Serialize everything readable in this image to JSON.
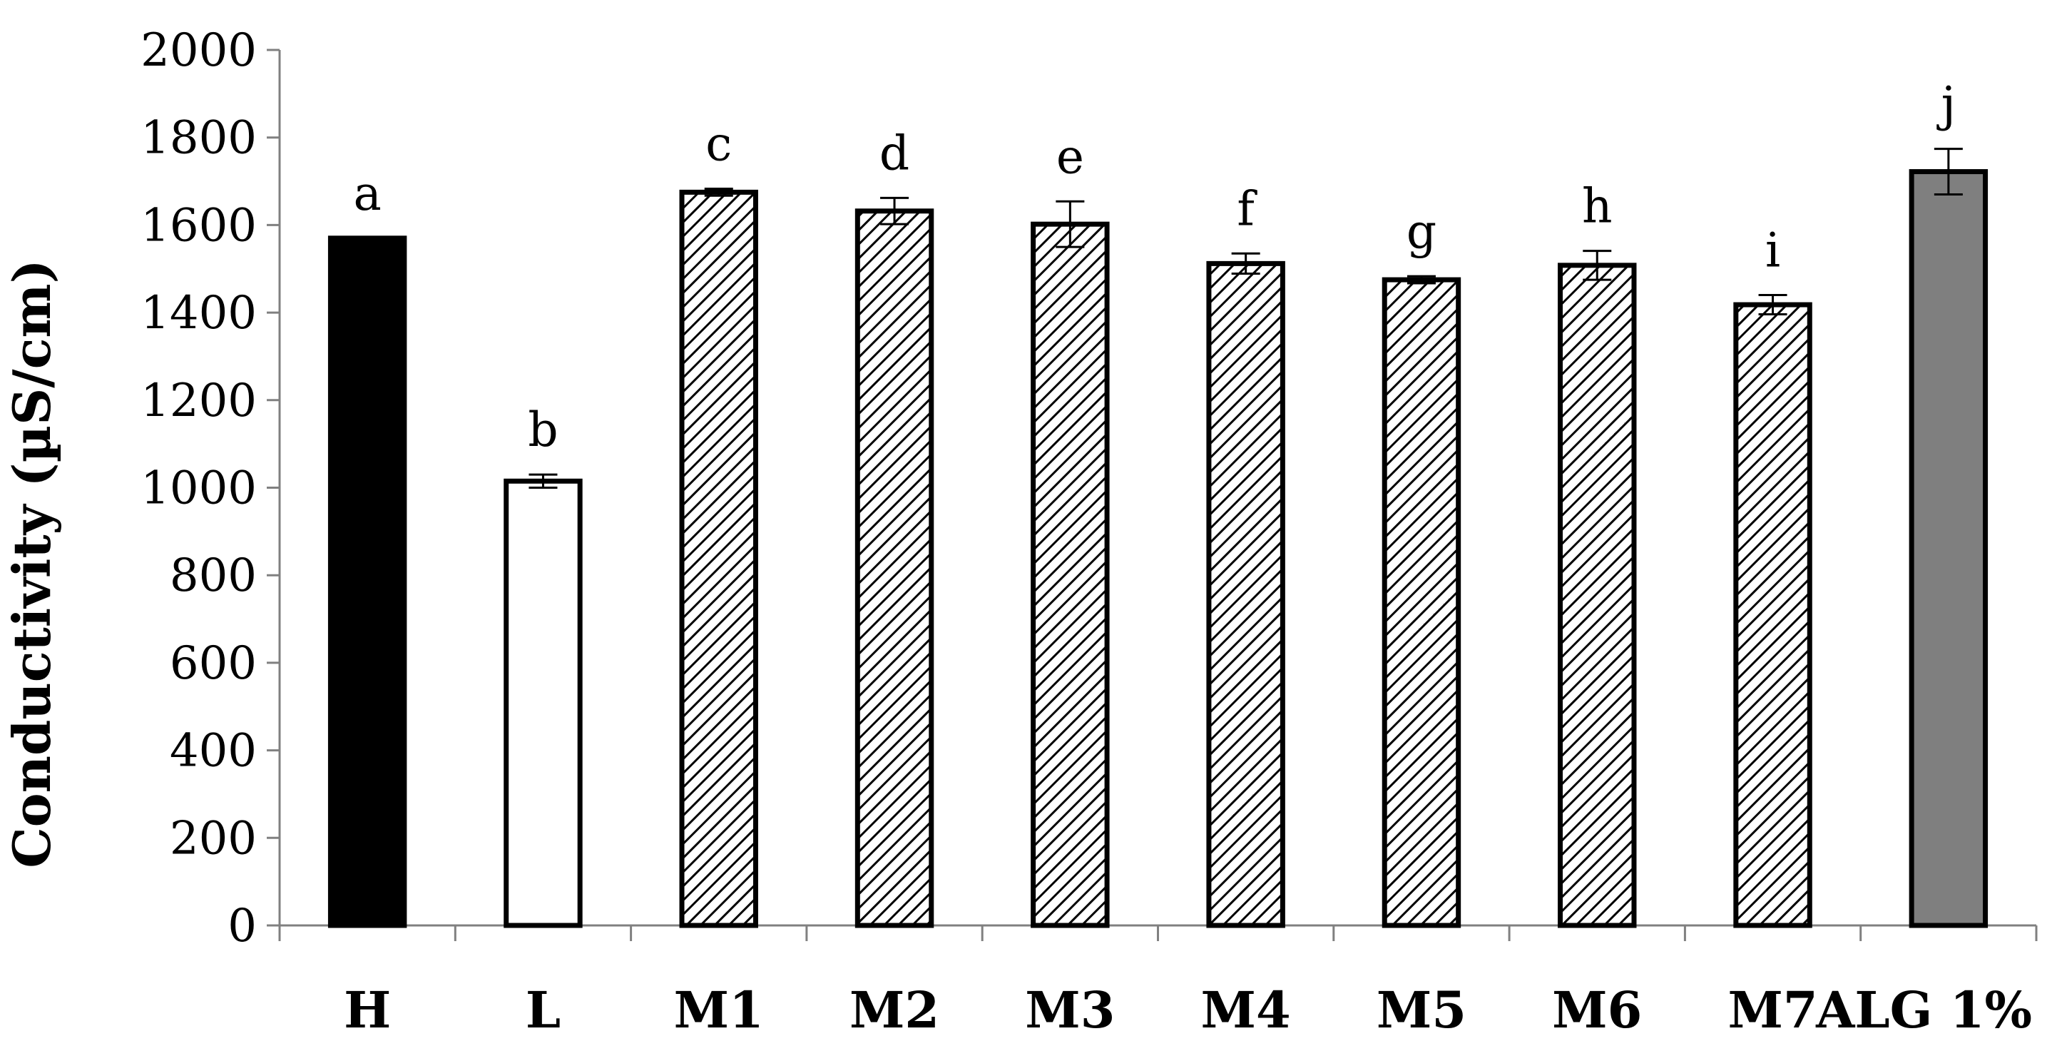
{
  "chart_data": {
    "type": "bar",
    "ylabel": "Conductivity (µS/cm)",
    "xlabel": "",
    "ylim": [
      0,
      2000
    ],
    "yticks": [
      0,
      200,
      400,
      600,
      800,
      1000,
      1200,
      1400,
      1600,
      1800,
      2000
    ],
    "grid": false,
    "legend": "none",
    "categories": [
      "H",
      "L",
      "M1",
      "M2",
      "M3",
      "M4",
      "M5",
      "M6",
      "M7",
      "ALG 1%"
    ],
    "values": [
      1570,
      1015,
      1675,
      1632,
      1602,
      1512,
      1475,
      1508,
      1418,
      1722
    ],
    "errors": [
      0,
      15,
      8,
      30,
      52,
      23,
      8,
      33,
      22,
      52
    ],
    "significance_letters": [
      "a",
      "b",
      "c",
      "d",
      "e",
      "f",
      "g",
      "h",
      "i",
      "j"
    ],
    "fills": [
      "solid-black",
      "white",
      "hatched",
      "hatched",
      "hatched",
      "hatched",
      "hatched",
      "hatched",
      "hatched",
      "dark-gray"
    ],
    "colors": {
      "black": "#000000",
      "white": "#ffffff",
      "gray": "#7f7f7f",
      "axis": "#808080"
    }
  }
}
